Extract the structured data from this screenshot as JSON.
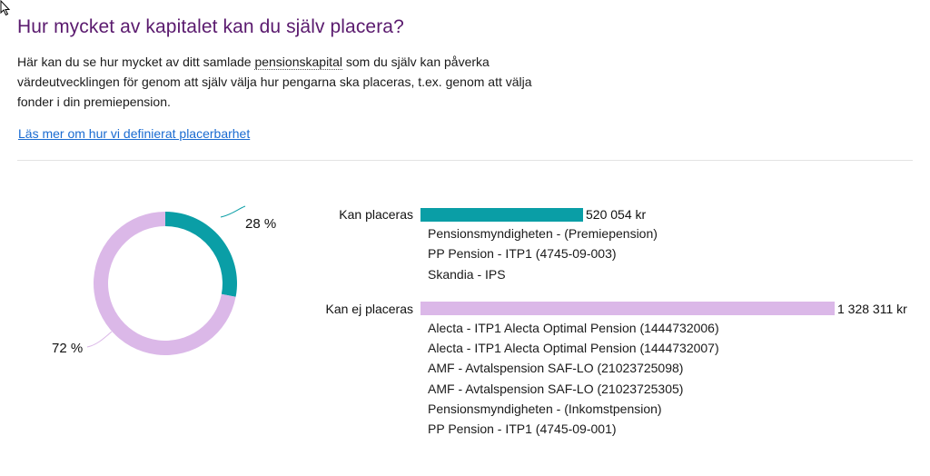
{
  "page": {
    "title": "Hur mycket av kapitalet kan du själv placera?",
    "intro": {
      "before": "Här kan du se hur mycket av ditt samlade ",
      "term": "pensionskapital",
      "after_line1": " som du själv kan påverka",
      "line2": "värdeutvecklingen för genom att själv välja hur pengarna ska placeras, t.ex. genom att välja",
      "line3": "fonder i din premiepension."
    },
    "link_label": "Läs mer om hur vi definierat placerbarhet"
  },
  "colors": {
    "placeable": "#0a9ea6",
    "not_placeable": "#dbb8e8",
    "title": "#5a1a6e",
    "link": "#1a6bd1"
  },
  "chart_data": [
    {
      "type": "pie",
      "subtype": "donut",
      "categories": [
        "Kan placeras",
        "Kan ej placeras"
      ],
      "values": [
        28,
        72
      ],
      "labels": [
        "28 %",
        "72 %"
      ],
      "colors": [
        "#0a9ea6",
        "#dbb8e8"
      ]
    },
    {
      "type": "bar",
      "orientation": "horizontal",
      "categories": [
        "Kan placeras",
        "Kan ej placeras"
      ],
      "values": [
        520054,
        1328311
      ],
      "value_labels": [
        "520 054 kr",
        "1 328 311 kr"
      ],
      "colors": [
        "#0a9ea6",
        "#dbb8e8"
      ]
    }
  ],
  "groups": [
    {
      "label": "Kan placeras",
      "value": "520 054 kr",
      "amount": 520054,
      "percent_label": "28 %",
      "items": [
        "Pensionsmyndigheten - (Premiepension)",
        "PP Pension - ITP1 (4745-09-003)",
        "Skandia - IPS"
      ]
    },
    {
      "label": "Kan ej placeras",
      "value": "1 328 311 kr",
      "amount": 1328311,
      "percent_label": "72 %",
      "items": [
        "Alecta - ITP1 Alecta Optimal Pension (1444732006)",
        "Alecta - ITP1 Alecta Optimal Pension (1444732007)",
        "AMF - Avtalspension SAF-LO (21023725098)",
        "AMF - Avtalspension SAF-LO (21023725305)",
        "Pensionsmyndigheten - (Inkomstpension)",
        "PP Pension - ITP1 (4745-09-001)"
      ]
    }
  ]
}
